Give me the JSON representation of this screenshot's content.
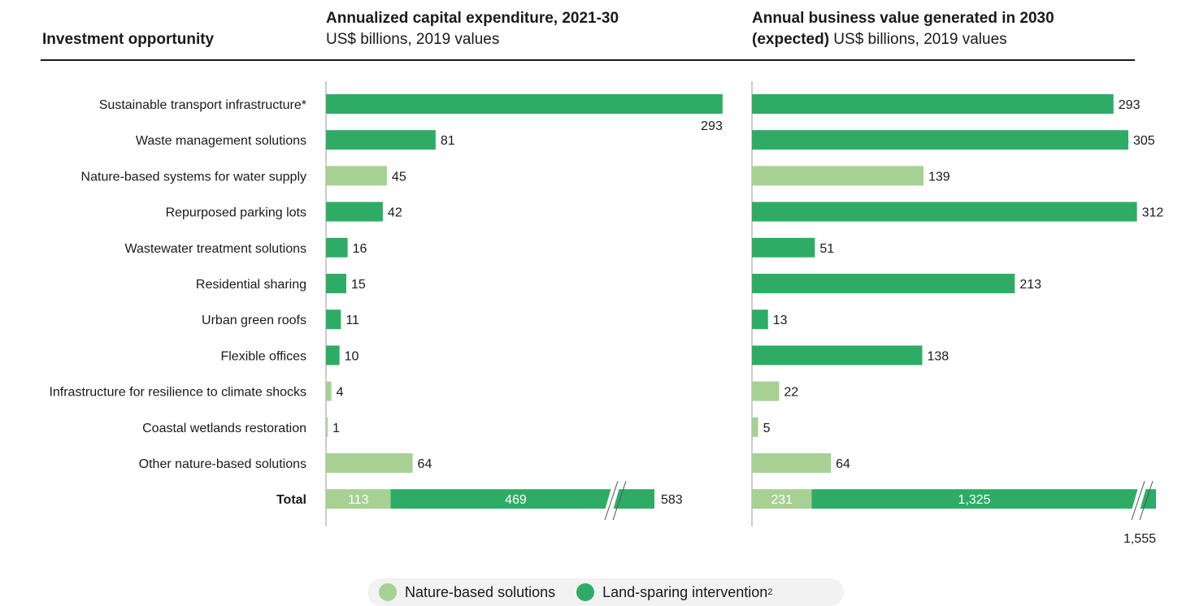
{
  "colors": {
    "nature": "#a6d193",
    "landsparing": "#2eac66",
    "text": "#1a1a1a",
    "axis": "#999999"
  },
  "header": {
    "col_label": "Investment opportunity",
    "left_title": "Annualized capital expenditure, 2021-30",
    "left_subtitle": "US$ billions, 2019 values",
    "right_title_line1": "Annual business value generated in 2030",
    "right_title_bold2": "(expected)",
    "right_subtitle": " US$ billions, 2019 values"
  },
  "legend": {
    "nature": "Nature-based solutions",
    "landsparing": "Land-sparing intervention",
    "landsparing_sup": "2"
  },
  "chart_data": {
    "type": "bar",
    "orientation": "horizontal",
    "categories": [
      "Sustainable transport infrastructure*",
      "Waste management solutions",
      "Nature-based systems for water supply",
      "Repurposed parking lots",
      "Wastewater treatment solutions",
      "Residential sharing",
      "Urban green roofs",
      "Flexible offices",
      "Infrastructure for resilience to climate shocks",
      "Coastal wetlands restoration",
      "Other nature-based solutions"
    ],
    "category_type": [
      "landsparing",
      "landsparing",
      "nature",
      "landsparing",
      "landsparing",
      "landsparing",
      "landsparing",
      "landsparing",
      "nature",
      "nature",
      "nature"
    ],
    "panels": [
      {
        "values": [
          293,
          81,
          45,
          42,
          16,
          15,
          11,
          10,
          4,
          1,
          64
        ],
        "labels": [
          "293",
          "81",
          "45",
          "42",
          "16",
          "15",
          "11",
          "10",
          "4",
          "1",
          "64"
        ],
        "total": {
          "label": "Total",
          "nature": 113,
          "landsparing": 469,
          "total": 583,
          "nature_label": "113",
          "landsparing_label": "469",
          "total_label": "583"
        }
      },
      {
        "values": [
          293,
          305,
          139,
          312,
          51,
          213,
          13,
          138,
          22,
          5,
          64
        ],
        "labels": [
          "293",
          "305",
          "139",
          "312",
          "51",
          "213",
          "13",
          "138",
          "22",
          "5",
          "64"
        ],
        "total": {
          "label": "Total",
          "nature": 231,
          "landsparing": 1325,
          "total": 1555,
          "nature_label": "231",
          "landsparing_label": "1,325",
          "total_label": "1,555"
        }
      }
    ]
  }
}
